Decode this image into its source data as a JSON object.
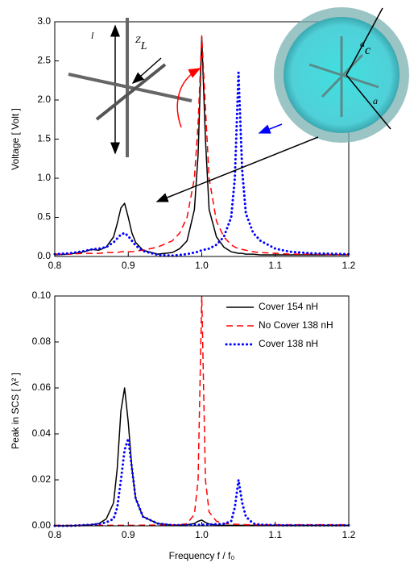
{
  "chart_data": [
    {
      "type": "line",
      "ylabel": "Voltage [ Volt ]",
      "annotations": [
        "l",
        "Z",
        "L",
        "a",
        "c",
        "a"
      ],
      "x": [
        0.8,
        0.82,
        0.84,
        0.85,
        0.86,
        0.87,
        0.88,
        0.885,
        0.89,
        0.895,
        0.9,
        0.905,
        0.91,
        0.92,
        0.94,
        0.96,
        0.97,
        0.98,
        0.99,
        0.995,
        1.0,
        1.005,
        1.01,
        1.02,
        1.03,
        1.04,
        1.045,
        1.05,
        1.055,
        1.06,
        1.07,
        1.08,
        1.1,
        1.12,
        1.15,
        1.2
      ],
      "series": [
        {
          "color": "#000000",
          "dash": "solid",
          "values": [
            0.02,
            0.03,
            0.06,
            0.09,
            0.08,
            0.12,
            0.25,
            0.42,
            0.62,
            0.68,
            0.5,
            0.3,
            0.18,
            0.08,
            0.03,
            0.05,
            0.1,
            0.2,
            0.6,
            1.3,
            2.8,
            1.5,
            0.6,
            0.25,
            0.12,
            0.06,
            0.05,
            0.04,
            0.04,
            0.03,
            0.03,
            0.02,
            0.02,
            0.02,
            0.02,
            0.02
          ]
        },
        {
          "color": "#ff0000",
          "dash": "dashed",
          "values": [
            0.03,
            0.03,
            0.04,
            0.04,
            0.04,
            0.05,
            0.05,
            0.05,
            0.06,
            0.06,
            0.06,
            0.06,
            0.07,
            0.08,
            0.12,
            0.2,
            0.3,
            0.5,
            1.0,
            1.7,
            2.82,
            1.9,
            1.0,
            0.45,
            0.25,
            0.15,
            0.12,
            0.1,
            0.09,
            0.08,
            0.06,
            0.05,
            0.04,
            0.03,
            0.03,
            0.02
          ]
        },
        {
          "color": "#0000ff",
          "dash": "dotted",
          "values": [
            0.03,
            0.04,
            0.07,
            0.09,
            0.1,
            0.12,
            0.18,
            0.23,
            0.28,
            0.3,
            0.26,
            0.2,
            0.14,
            0.07,
            0.02,
            0.01,
            0.02,
            0.03,
            0.05,
            0.06,
            0.08,
            0.09,
            0.1,
            0.15,
            0.25,
            0.5,
            1.0,
            2.35,
            1.1,
            0.55,
            0.3,
            0.2,
            0.1,
            0.06,
            0.04,
            0.03
          ]
        }
      ],
      "xlim": [
        0.8,
        1.2
      ],
      "xticks": [
        0.8,
        0.9,
        {
          "value": 1,
          "label": "1.0"
        },
        1.1,
        1.2
      ],
      "ylim": [
        0,
        3
      ],
      "yticks": [
        {
          "value": 0,
          "label": "0.0"
        },
        0.5,
        {
          "value": 1,
          "label": "1.0"
        },
        1.5,
        {
          "value": 2,
          "label": "2.0"
        },
        2.5,
        {
          "value": 3,
          "label": "3.0"
        }
      ]
    },
    {
      "type": "line",
      "ylabel": "Peak in SCS [ λ² ]",
      "xlabel": "Frequency f / f₀",
      "legend": "upper right",
      "x": [
        0.8,
        0.82,
        0.84,
        0.85,
        0.86,
        0.87,
        0.88,
        0.885,
        0.89,
        0.895,
        0.9,
        0.905,
        0.91,
        0.92,
        0.94,
        0.96,
        0.97,
        0.98,
        0.99,
        0.995,
        1.0,
        1.005,
        1.01,
        1.02,
        1.03,
        1.04,
        1.045,
        1.05,
        1.055,
        1.06,
        1.07,
        1.08,
        1.1,
        1.12,
        1.15,
        1.2
      ],
      "series": [
        {
          "name": "Cover 154 nH",
          "color": "#000000",
          "dash": "solid",
          "values": [
            0,
            0,
            0.0003,
            0.0005,
            0.001,
            0.003,
            0.01,
            0.025,
            0.05,
            0.06,
            0.045,
            0.025,
            0.012,
            0.004,
            0.001,
            0.0003,
            0.0003,
            0.0005,
            0.001,
            0.002,
            0.0025,
            0.0015,
            0.0008,
            0.0003,
            0.0002,
            0.0002,
            0.0002,
            0.0002,
            0.0002,
            0.0002,
            0.0002,
            0.0002,
            0.0002,
            0.0002,
            0.0002,
            0.0002
          ]
        },
        {
          "name": "No Cover 138 nH",
          "color": "#ff0000",
          "dash": "dashed",
          "values": [
            0.0002,
            0.0002,
            0.0002,
            0.0002,
            0.0002,
            0.0002,
            0.0002,
            0.0002,
            0.0002,
            0.0002,
            0.0002,
            0.0002,
            0.0002,
            0.0003,
            0.0003,
            0.0004,
            0.0005,
            0.001,
            0.005,
            0.02,
            0.1,
            0.02,
            0.006,
            0.002,
            0.001,
            0.0008,
            0.0007,
            0.0006,
            0.0006,
            0.0005,
            0.0005,
            0.0005,
            0.0005,
            0.0005,
            0.0005,
            0.0005
          ]
        },
        {
          "name": "Cover 138 nH",
          "color": "#0000ff",
          "dash": "dotted",
          "values": [
            0,
            0,
            0.0003,
            0.0005,
            0.0008,
            0.0015,
            0.003,
            0.008,
            0.02,
            0.033,
            0.038,
            0.025,
            0.012,
            0.004,
            0.001,
            0.0003,
            0.0003,
            0.0003,
            0.0004,
            0.0004,
            0.0005,
            0.0005,
            0.0006,
            0.0007,
            0.0009,
            0.002,
            0.008,
            0.02,
            0.01,
            0.004,
            0.001,
            0.0005,
            0.0003,
            0.0002,
            0.0002,
            0.0002
          ]
        }
      ],
      "xlim": [
        0.8,
        1.2
      ],
      "xticks": [
        0.8,
        0.9,
        {
          "value": 1,
          "label": "1.0"
        },
        1.1,
        1.2
      ],
      "ylim": [
        0,
        0.1
      ],
      "yticks": [
        {
          "value": 0,
          "label": "0.00"
        },
        0.02,
        0.04,
        0.06,
        0.08,
        {
          "value": 0.1,
          "label": "0.10"
        }
      ]
    }
  ]
}
